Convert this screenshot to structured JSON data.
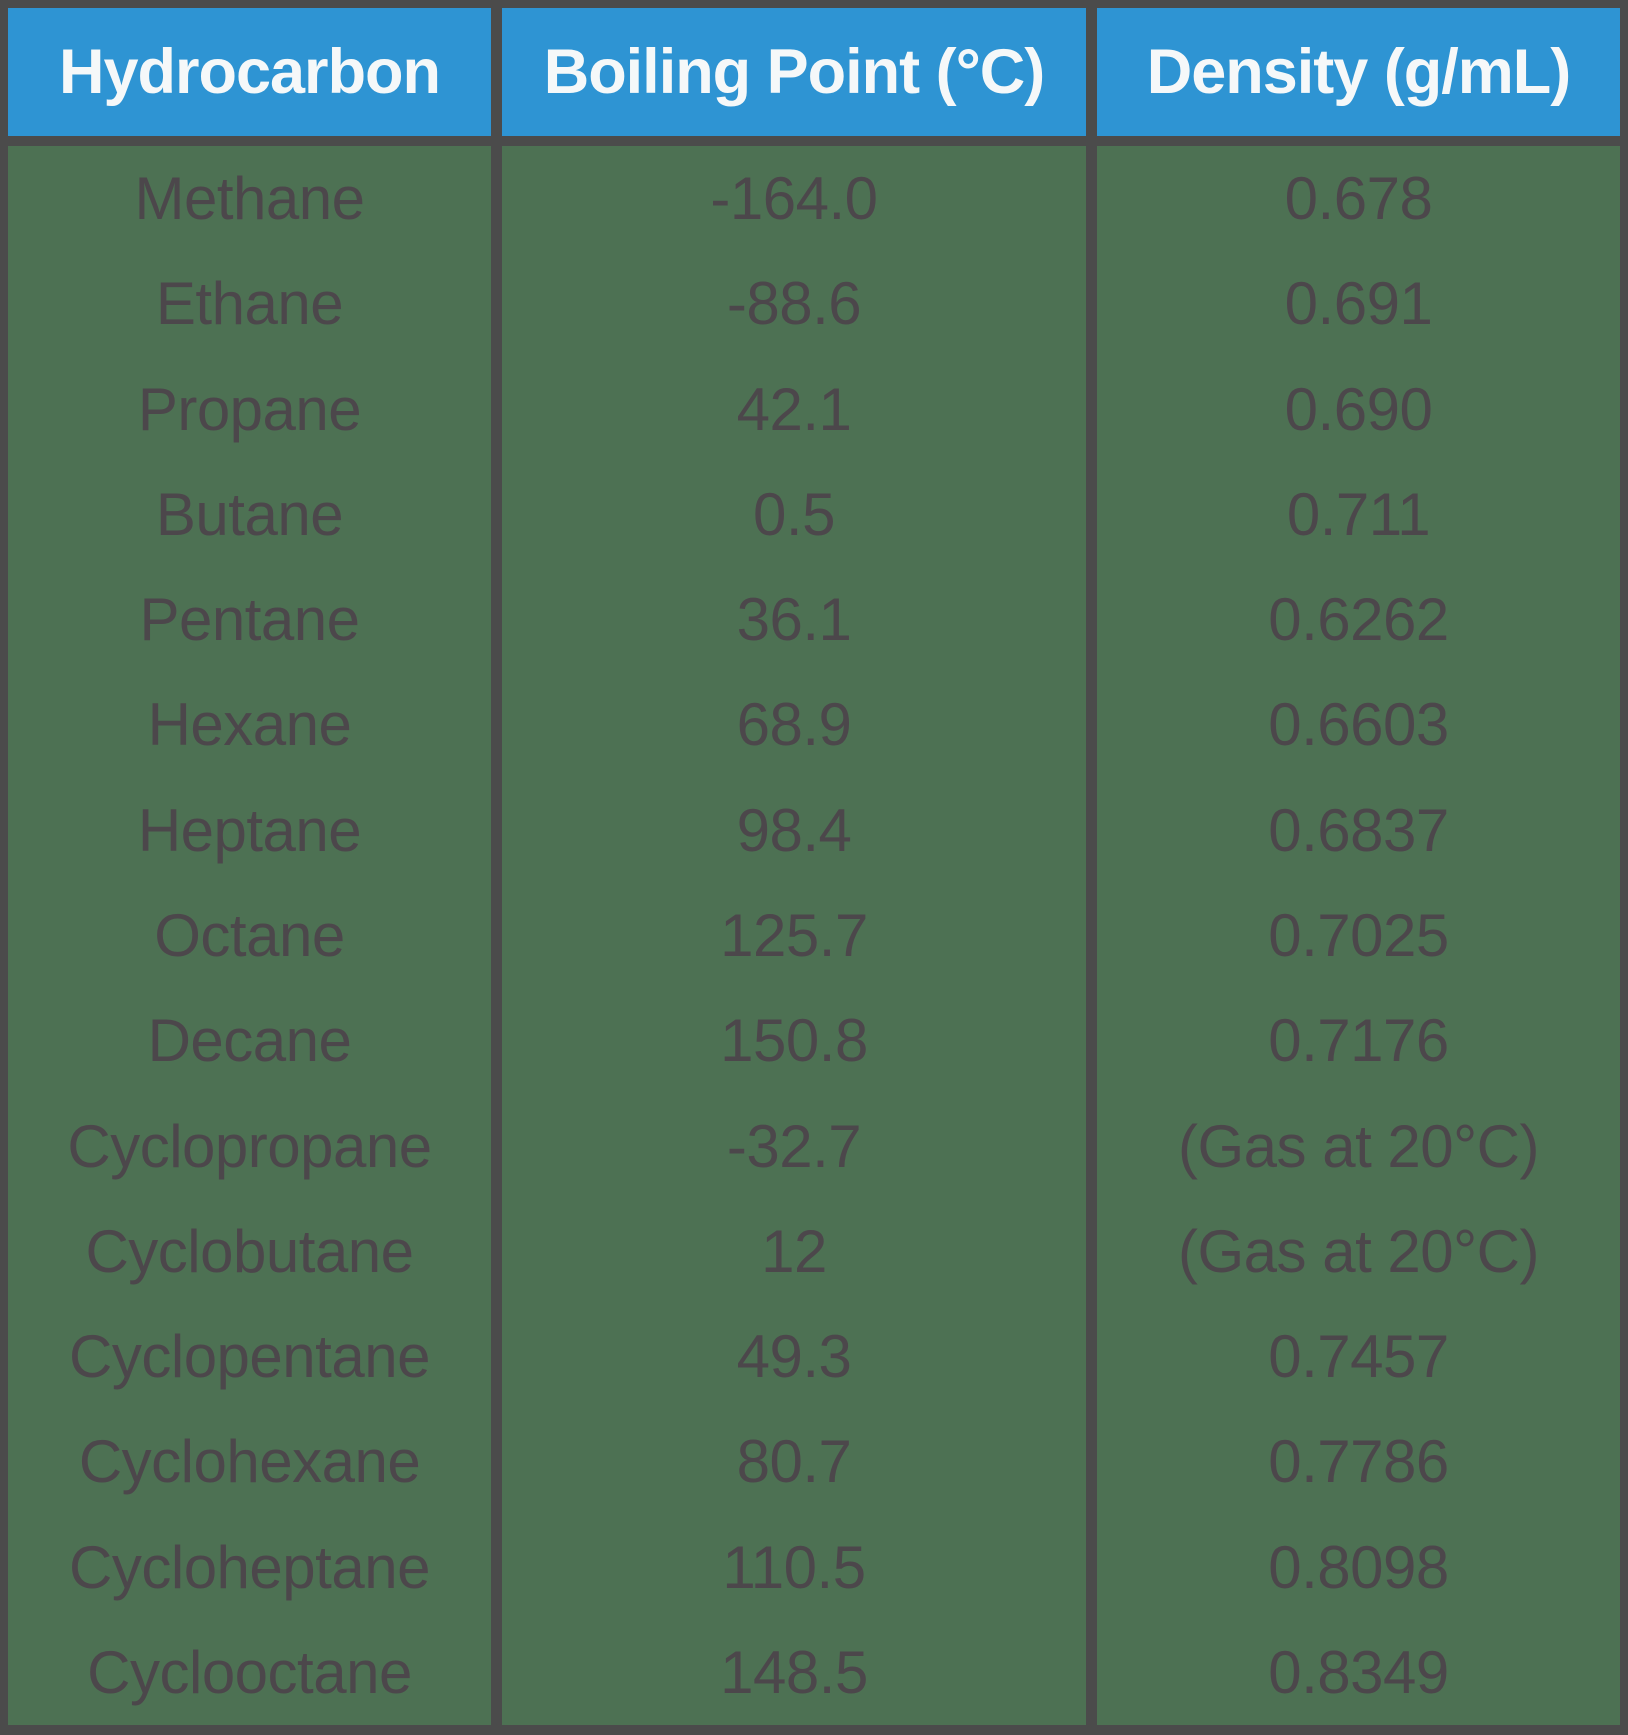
{
  "chart_data": {
    "type": "table",
    "columns": [
      "Hydrocarbon",
      "Boiling Point (°C)",
      "Density (g/mL)"
    ],
    "rows": [
      [
        "Methane",
        "-164.0",
        "0.678"
      ],
      [
        "Ethane",
        "-88.6",
        "0.691"
      ],
      [
        "Propane",
        "42.1",
        "0.690"
      ],
      [
        "Butane",
        "0.5",
        "0.711"
      ],
      [
        "Pentane",
        "36.1",
        "0.6262"
      ],
      [
        "Hexane",
        "68.9",
        "0.6603"
      ],
      [
        "Heptane",
        "98.4",
        "0.6837"
      ],
      [
        "Octane",
        "125.7",
        "0.7025"
      ],
      [
        "Decane",
        "150.8",
        "0.7176"
      ],
      [
        "Cyclopropane",
        "-32.7",
        "(Gas at 20°C)"
      ],
      [
        "Cyclobutane",
        "12",
        "(Gas at 20°C)"
      ],
      [
        "Cyclopentane",
        "49.3",
        "0.7457"
      ],
      [
        "Cyclohexane",
        "80.7",
        "0.7786"
      ],
      [
        "Cycloheptane",
        "110.5",
        "0.8098"
      ],
      [
        "Cyclooctane",
        "148.5",
        "0.8349"
      ]
    ],
    "layout": {
      "grid": "off",
      "header_position": "top"
    }
  },
  "colors": {
    "header_bg": "#2e94d3",
    "header_text": "#f5f8f9",
    "body_bg": "#4d7153",
    "frame": "#4b4b4b",
    "body_text": "#4c474b"
  }
}
